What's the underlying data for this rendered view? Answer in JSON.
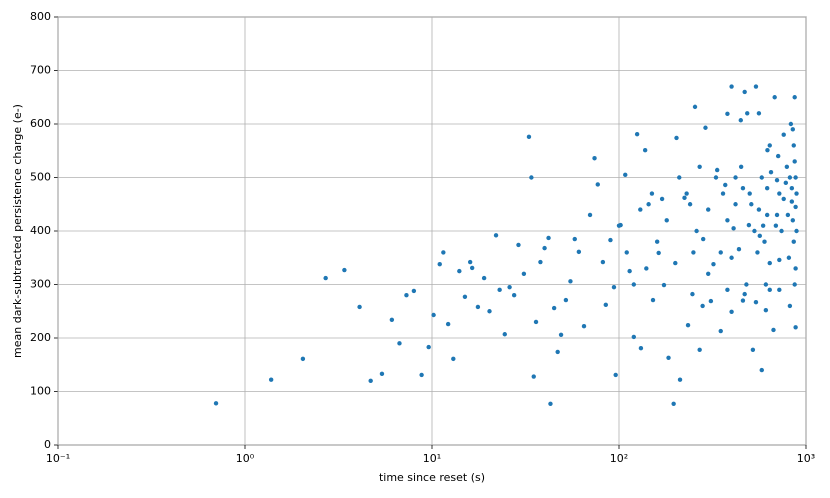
{
  "chart_data": {
    "type": "scatter",
    "color": "#1f77b4",
    "xscale": "log",
    "grid": true,
    "xlabel": "time since reset (s)",
    "ylabel": "mean dark-subtracted persistence charge (e-)",
    "xlim": [
      0.1,
      1000
    ],
    "ylim": [
      0,
      800
    ],
    "xticks": [
      {
        "value": 0.1,
        "label": "10⁻¹"
      },
      {
        "value": 1,
        "label": "10⁰"
      },
      {
        "value": 10,
        "label": "10¹"
      },
      {
        "value": 100,
        "label": "10²"
      },
      {
        "value": 1000,
        "label": "10³"
      }
    ],
    "yticks": [
      0,
      100,
      200,
      300,
      400,
      500,
      600,
      700,
      800
    ],
    "x": [
      0.7,
      1.38,
      2.04,
      2.7,
      3.4,
      4.1,
      4.7,
      5.4,
      6.1,
      6.7,
      7.3,
      8.0,
      8.8,
      9.6,
      10.2,
      11,
      11.5,
      12.2,
      13,
      14,
      15,
      16,
      16.4,
      17.6,
      19,
      20.3,
      22,
      23,
      24.5,
      26,
      27.5,
      29,
      31,
      33,
      34,
      35,
      36,
      38,
      40,
      42,
      43,
      45,
      47,
      49,
      52,
      55,
      58,
      61,
      65,
      70,
      74,
      77,
      82,
      85,
      90,
      94,
      96,
      102,
      108,
      114,
      120,
      125,
      131,
      138,
      144,
      152,
      163,
      174,
      184,
      196,
      203,
      212,
      224,
      234,
      247,
      255,
      270,
      282,
      290,
      310,
      320,
      335,
      350,
      370,
      380,
      400,
      410,
      438,
      448,
      470,
      485,
      495,
      520,
      540,
      566,
      580,
      610,
      622,
      640,
      670,
      700,
      720,
      420,
      500,
      560,
      620,
      700,
      760,
      820,
      850,
      880,
      450,
      530,
      600,
      650,
      720,
      780,
      840,
      860,
      870,
      890,
      380,
      350,
      300,
      260,
      230,
      200,
      180,
      160,
      140,
      130,
      120,
      110,
      100,
      300,
      400,
      480,
      550,
      640,
      740,
      810,
      870,
      880,
      860,
      830,
      760,
      640,
      560,
      470,
      400,
      540,
      680,
      870,
      850,
      790,
      710,
      620,
      580,
      510,
      460,
      420,
      360,
      330,
      270,
      240,
      210,
      170,
      150,
      250,
      280,
      380,
      460,
      610,
      720,
      820,
      880,
      890,
      880,
      840,
      800,
      690,
      590
    ],
    "values": [
      78,
      122,
      161,
      312,
      327,
      258,
      120,
      133,
      234,
      190,
      280,
      288,
      131,
      183,
      243,
      338,
      360,
      226,
      161,
      325,
      277,
      342,
      331,
      258,
      312,
      250,
      392,
      290,
      207,
      295,
      280,
      374,
      320,
      576,
      500,
      128,
      230,
      342,
      368,
      387,
      77,
      256,
      174,
      206,
      271,
      306,
      385,
      361,
      222,
      430,
      536,
      487,
      342,
      262,
      383,
      295,
      131,
      411,
      505,
      325,
      202,
      581,
      181,
      551,
      450,
      271,
      359,
      299,
      163,
      77,
      574,
      122,
      462,
      224,
      282,
      632,
      178,
      385,
      593,
      269,
      338,
      514,
      213,
      486,
      619,
      249,
      405,
      366,
      607,
      282,
      620,
      411,
      178,
      267,
      391,
      140,
      252,
      551,
      290,
      215,
      495,
      346,
      450,
      470,
      440,
      480,
      430,
      460,
      500,
      420,
      445,
      520,
      400,
      380,
      510,
      470,
      490,
      455,
      380,
      530,
      470,
      420,
      360,
      440,
      400,
      470,
      340,
      420,
      380,
      330,
      440,
      300,
      360,
      410,
      320,
      350,
      300,
      360,
      340,
      400,
      350,
      300,
      220,
      560,
      600,
      580,
      560,
      620,
      660,
      670,
      670,
      650,
      650,
      590,
      520,
      540,
      430,
      500,
      450,
      480,
      500,
      470,
      500,
      520,
      450,
      500,
      460,
      470,
      360,
      260,
      290,
      270,
      300,
      290,
      260,
      330,
      400,
      500,
      480,
      430,
      410,
      410
    ]
  }
}
